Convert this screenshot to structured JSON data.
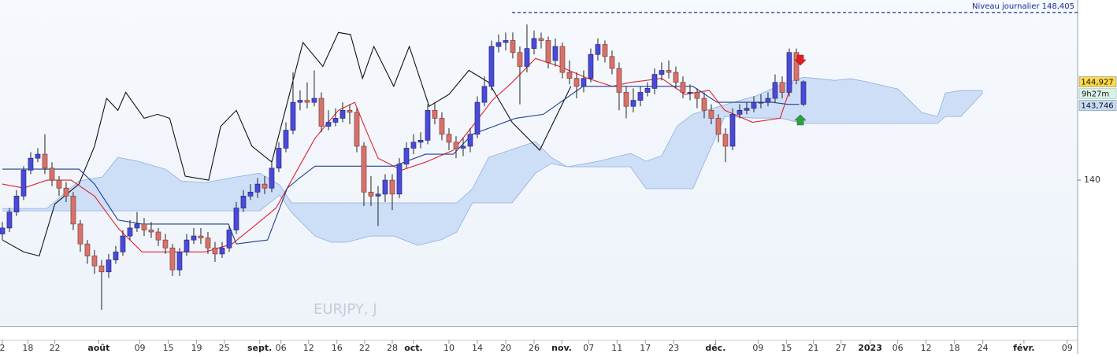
{
  "chart_data": {
    "type": "candlestick",
    "watermark": "EURJPY, J",
    "ylim": [
      132.67,
      149.03
    ],
    "yticks": [
      140
    ],
    "xlim": [
      -0.33,
      151.67
    ],
    "xticks": [
      {
        "value": 0,
        "label": "2"
      },
      {
        "value": 3.6,
        "label": "18"
      },
      {
        "value": 7.4,
        "label": "22"
      },
      {
        "value": 13.6,
        "label": "août",
        "major": true
      },
      {
        "value": 19.4,
        "label": "09"
      },
      {
        "value": 23.4,
        "label": "15"
      },
      {
        "value": 27.4,
        "label": "19"
      },
      {
        "value": 31.3,
        "label": "25"
      },
      {
        "value": 36.3,
        "label": "sept.",
        "major": true
      },
      {
        "value": 39.3,
        "label": "06"
      },
      {
        "value": 43.2,
        "label": "12"
      },
      {
        "value": 47.2,
        "label": "16"
      },
      {
        "value": 51.1,
        "label": "22"
      },
      {
        "value": 55,
        "label": "28"
      },
      {
        "value": 58,
        "label": "oct.",
        "major": true
      },
      {
        "value": 63,
        "label": "10"
      },
      {
        "value": 67,
        "label": "14"
      },
      {
        "value": 71,
        "label": "20"
      },
      {
        "value": 75,
        "label": "26"
      },
      {
        "value": 78.9,
        "label": "nov.",
        "major": true
      },
      {
        "value": 82.7,
        "label": "07"
      },
      {
        "value": 86.7,
        "label": "11"
      },
      {
        "value": 90.7,
        "label": "17"
      },
      {
        "value": 94.7,
        "label": "23"
      },
      {
        "value": 100.6,
        "label": "déc.",
        "major": true
      },
      {
        "value": 106.6,
        "label": "09"
      },
      {
        "value": 110.6,
        "label": "15"
      },
      {
        "value": 114.4,
        "label": "21"
      },
      {
        "value": 118.3,
        "label": "27"
      },
      {
        "value": 122.4,
        "label": "2023",
        "major": true
      },
      {
        "value": 126.3,
        "label": "06"
      },
      {
        "value": 130.3,
        "label": "12"
      },
      {
        "value": 134.3,
        "label": "18"
      },
      {
        "value": 138.3,
        "label": "24"
      },
      {
        "value": 144.1,
        "label": "févr.",
        "major": true
      },
      {
        "value": 150.2,
        "label": "09"
      }
    ],
    "colors": {
      "up": "#4a4ad6",
      "down": "#d4736c"
    },
    "ohlc": [
      [
        137.3,
        137.9,
        137.0,
        137.6
      ],
      [
        137.6,
        138.6,
        137.4,
        138.4
      ],
      [
        138.4,
        139.5,
        138.2,
        139.2
      ],
      [
        139.2,
        140.7,
        139.0,
        140.5
      ],
      [
        140.5,
        141.4,
        140.3,
        141.1
      ],
      [
        141.1,
        141.6,
        140.9,
        141.3
      ],
      [
        141.3,
        142.3,
        140.3,
        140.6
      ],
      [
        140.6,
        140.9,
        139.7,
        140.0
      ],
      [
        140.0,
        140.2,
        139.2,
        139.6
      ],
      [
        139.6,
        139.9,
        138.9,
        139.2
      ],
      [
        139.2,
        139.4,
        137.5,
        137.8
      ],
      [
        137.8,
        138.0,
        136.4,
        136.8
      ],
      [
        136.8,
        137.0,
        135.8,
        136.2
      ],
      [
        136.2,
        136.5,
        135.3,
        135.7
      ],
      [
        135.7,
        136.0,
        133.5,
        135.4
      ],
      [
        135.4,
        136.3,
        135.1,
        136.0
      ],
      [
        136.0,
        136.7,
        135.8,
        136.4
      ],
      [
        136.4,
        137.5,
        136.2,
        137.2
      ],
      [
        137.2,
        138.0,
        137.0,
        137.6
      ],
      [
        137.6,
        138.4,
        137.4,
        137.8
      ],
      [
        137.8,
        138.1,
        137.2,
        137.5
      ],
      [
        137.5,
        137.9,
        137.1,
        137.4
      ],
      [
        137.4,
        137.6,
        136.7,
        137.0
      ],
      [
        137.0,
        137.3,
        136.3,
        136.6
      ],
      [
        136.6,
        136.8,
        135.2,
        135.5
      ],
      [
        135.5,
        136.6,
        135.2,
        136.4
      ],
      [
        136.4,
        137.3,
        136.2,
        137.0
      ],
      [
        137.0,
        137.6,
        136.8,
        137.2
      ],
      [
        137.2,
        137.6,
        136.8,
        137.1
      ],
      [
        137.1,
        137.4,
        136.3,
        136.6
      ],
      [
        136.6,
        136.9,
        135.9,
        136.3
      ],
      [
        136.3,
        136.9,
        136.1,
        136.6
      ],
      [
        136.6,
        137.7,
        136.4,
        137.5
      ],
      [
        137.5,
        138.9,
        137.3,
        138.6
      ],
      [
        138.6,
        139.5,
        138.4,
        139.2
      ],
      [
        139.2,
        139.8,
        139.0,
        139.4
      ],
      [
        139.4,
        140.1,
        139.1,
        139.8
      ],
      [
        139.8,
        140.2,
        139.3,
        139.6
      ],
      [
        139.6,
        141.0,
        139.4,
        140.6
      ],
      [
        140.6,
        141.9,
        140.4,
        141.6
      ],
      [
        141.6,
        142.9,
        141.4,
        142.5
      ],
      [
        142.5,
        145.4,
        142.3,
        143.9
      ],
      [
        143.9,
        144.5,
        143.5,
        144.0
      ],
      [
        144.0,
        144.9,
        143.6,
        143.9
      ],
      [
        143.9,
        145.5,
        143.7,
        144.1
      ],
      [
        144.1,
        144.4,
        142.4,
        142.7
      ],
      [
        142.7,
        143.5,
        142.5,
        142.9
      ],
      [
        142.9,
        143.6,
        142.7,
        143.1
      ],
      [
        143.1,
        143.9,
        142.9,
        143.5
      ],
      [
        143.5,
        143.8,
        142.8,
        143.4
      ],
      [
        143.4,
        143.6,
        141.4,
        141.7
      ],
      [
        141.7,
        141.9,
        138.7,
        139.4
      ],
      [
        139.4,
        140.2,
        138.7,
        139.2
      ],
      [
        139.2,
        139.7,
        137.7,
        139.3
      ],
      [
        139.3,
        140.3,
        138.9,
        140.0
      ],
      [
        140.0,
        140.3,
        138.5,
        139.3
      ],
      [
        139.3,
        141.1,
        139.1,
        140.8
      ],
      [
        140.8,
        141.9,
        140.6,
        141.6
      ],
      [
        141.6,
        142.3,
        141.3,
        141.9
      ],
      [
        141.9,
        142.4,
        141.6,
        142.0
      ],
      [
        142.0,
        143.8,
        141.8,
        143.5
      ],
      [
        143.5,
        143.9,
        142.8,
        143.1
      ],
      [
        143.1,
        143.4,
        142.0,
        142.3
      ],
      [
        142.3,
        142.6,
        141.5,
        141.9
      ],
      [
        141.9,
        142.2,
        141.1,
        141.6
      ],
      [
        141.6,
        142.1,
        141.2,
        141.7
      ],
      [
        141.7,
        142.6,
        141.4,
        142.3
      ],
      [
        142.3,
        144.2,
        142.1,
        143.9
      ],
      [
        143.9,
        145.2,
        143.7,
        144.7
      ],
      [
        144.7,
        147.0,
        144.5,
        146.7
      ],
      [
        146.7,
        147.3,
        146.4,
        146.9
      ],
      [
        146.9,
        147.4,
        146.5,
        147.0
      ],
      [
        147.0,
        147.4,
        146.1,
        146.4
      ],
      [
        146.4,
        146.7,
        143.8,
        145.7
      ],
      [
        145.7,
        147.8,
        145.4,
        146.6
      ],
      [
        146.6,
        147.5,
        146.3,
        147.1
      ],
      [
        147.1,
        147.4,
        146.6,
        147.0
      ],
      [
        147.0,
        147.2,
        145.6,
        145.9
      ],
      [
        146.0,
        147.1,
        145.7,
        146.7
      ],
      [
        146.7,
        146.9,
        145.1,
        145.4
      ],
      [
        145.4,
        146.0,
        144.8,
        145.1
      ],
      [
        145.1,
        145.4,
        144.1,
        144.7
      ],
      [
        144.7,
        145.5,
        144.4,
        145.1
      ],
      [
        145.1,
        146.6,
        144.9,
        146.3
      ],
      [
        146.3,
        147.1,
        146.0,
        146.8
      ],
      [
        146.8,
        147.0,
        145.9,
        146.2
      ],
      [
        146.2,
        146.5,
        145.3,
        145.6
      ],
      [
        145.6,
        145.9,
        143.5,
        144.4
      ],
      [
        144.4,
        144.7,
        143.1,
        143.7
      ],
      [
        143.7,
        144.6,
        143.4,
        144.0
      ],
      [
        144.0,
        144.7,
        143.7,
        144.4
      ],
      [
        144.4,
        144.9,
        144.2,
        144.6
      ],
      [
        144.6,
        145.6,
        144.3,
        145.3
      ],
      [
        145.3,
        145.9,
        145.0,
        145.5
      ],
      [
        145.5,
        146.0,
        145.1,
        145.4
      ],
      [
        145.4,
        145.7,
        144.6,
        144.9
      ],
      [
        144.9,
        145.2,
        144.1,
        144.4
      ],
      [
        144.4,
        144.8,
        144.0,
        144.4
      ],
      [
        144.4,
        144.6,
        143.6,
        144.1
      ],
      [
        144.1,
        144.4,
        143.1,
        143.5
      ],
      [
        143.5,
        143.8,
        142.8,
        143.1
      ],
      [
        143.1,
        143.3,
        141.9,
        142.3
      ],
      [
        142.3,
        142.6,
        140.9,
        141.7
      ],
      [
        141.7,
        143.6,
        141.5,
        143.3
      ],
      [
        143.3,
        143.8,
        143.1,
        143.5
      ],
      [
        143.5,
        143.9,
        143.3,
        143.6
      ],
      [
        143.6,
        144.2,
        143.4,
        143.9
      ],
      [
        143.9,
        144.3,
        143.6,
        143.9
      ],
      [
        143.9,
        144.4,
        143.7,
        144.1
      ],
      [
        144.1,
        145.3,
        143.9,
        144.9
      ],
      [
        144.9,
        145.2,
        144.1,
        144.4
      ],
      [
        144.4,
        146.6,
        144.2,
        146.4
      ],
      [
        146.4,
        146.6,
        144.8,
        145.0
      ],
      [
        143.8,
        145.0,
        143.7,
        144.93
      ]
    ],
    "lines": [
      {
        "color": "#111111",
        "x": [
          0,
          3,
          5.2,
          7.4,
          10.8,
          13,
          14.7,
          16.3,
          17.4,
          20,
          21.9,
          23.6,
          25.8,
          29.1,
          30.8,
          33,
          35.2,
          38,
          40.2,
          42.4,
          45.2,
          47.4,
          49.1,
          50.8,
          52.4,
          55.2,
          57.4,
          60.2,
          63,
          65.8,
          68.6,
          71.9,
          75.8,
          78,
          80.2
        ],
        "values": [
          137.0,
          136.4,
          136.2,
          138.8,
          139.8,
          141.7,
          144.1,
          143.5,
          144.4,
          143.1,
          143.3,
          143.1,
          140.2,
          140.0,
          142.7,
          143.5,
          141.7,
          140.9,
          143.9,
          146.9,
          145.7,
          147.4,
          147.3,
          145.1,
          146.7,
          144.7,
          146.7,
          143.7,
          144.3,
          145.5,
          144.9,
          142.9,
          141.5,
          143.1,
          144.7
        ]
      },
      {
        "color": "#e0232b",
        "x": [
          0,
          3,
          6.3,
          9.7,
          13,
          16.3,
          19.7,
          23.6,
          28.6,
          32.4,
          35.2,
          38.6,
          41.9,
          44.1,
          47.4,
          49.7,
          51.3,
          53,
          56.3,
          59.7,
          63.6,
          66.3,
          69.1,
          71.9,
          75.2,
          78.6,
          82.6,
          86,
          88.6,
          93,
          96.3,
          99.7,
          101.9,
          105.8,
          109.7,
          111.4
        ],
        "values": [
          139.8,
          139.6,
          140.0,
          140.0,
          139.2,
          137.6,
          136.4,
          136.4,
          136.4,
          136.8,
          137.6,
          138.6,
          140.7,
          142.1,
          143.5,
          143.9,
          142.5,
          141.1,
          140.5,
          140.9,
          141.5,
          142.7,
          144.0,
          144.9,
          146.1,
          145.7,
          145.1,
          144.7,
          144.9,
          145.1,
          144.3,
          144.5,
          143.5,
          142.9,
          143.1,
          144.9
        ]
      },
      {
        "color": "#1f3f8f",
        "x": [
          0,
          10.8,
          13,
          16.3,
          19.7,
          31.9,
          33,
          37.4,
          40.2,
          41.9,
          44.1,
          55.2,
          59.7,
          63.6,
          66.3,
          72.4,
          76.3,
          81.9,
          97.4,
          100.8,
          108.6,
          110.8,
          112.4
        ],
        "values": [
          140.55,
          140.55,
          139.8,
          138.0,
          137.8,
          137.8,
          136.8,
          137.0,
          139.6,
          140.1,
          140.7,
          140.7,
          141.3,
          141.3,
          142.3,
          143.1,
          143.3,
          144.7,
          144.7,
          143.9,
          143.9,
          143.8,
          143.8
        ]
      }
    ],
    "cloud": {
      "color": "#c7d9f6",
      "x": [
        0,
        6.3,
        10.8,
        14.1,
        16.3,
        19.1,
        23,
        25.2,
        28.6,
        33,
        36.3,
        39.1,
        40.8,
        44.1,
        46.3,
        48.6,
        51.9,
        55.2,
        58.6,
        61.9,
        64.1,
        66.3,
        68.6,
        71.9,
        75.2,
        77.4,
        79.7,
        84.1,
        88.6,
        90.8,
        93,
        95.2,
        97.4,
        101.9,
        106.3,
        109.7,
        113,
        117.4,
        119.7,
        121.9,
        126.3,
        129.7,
        131.9,
        133,
        135.2,
        138.3
      ],
      "upper": [
        138.58,
        138.58,
        139.96,
        140.16,
        141.14,
        140.95,
        140.55,
        139.96,
        139.88,
        140.16,
        140.35,
        139.76,
        138.86,
        138.86,
        138.86,
        138.86,
        138.86,
        138.86,
        138.86,
        138.86,
        138.86,
        139.57,
        141.14,
        141.54,
        141.93,
        141.14,
        140.67,
        140.95,
        141.34,
        140.95,
        141.22,
        142.72,
        143.31,
        143.78,
        144.22,
        144.77,
        145.16,
        145.0,
        145.08,
        144.93,
        144.57,
        143.39,
        143.19,
        144.37,
        144.49,
        144.49
      ],
      "lower": [
        138.46,
        138.46,
        138.46,
        138.46,
        138.46,
        138.46,
        138.46,
        138.46,
        138.46,
        138.46,
        138.46,
        139.25,
        138.38,
        137.2,
        136.89,
        136.89,
        137.2,
        137.2,
        136.73,
        137.01,
        137.4,
        138.86,
        138.86,
        138.86,
        140.35,
        140.83,
        140.67,
        140.67,
        140.67,
        139.57,
        139.57,
        139.57,
        139.57,
        143.19,
        143.11,
        143.11,
        142.84,
        142.84,
        142.84,
        142.84,
        142.84,
        142.84,
        142.84,
        143.19,
        143.19,
        144.37
      ]
    },
    "level": {
      "value": 148.405,
      "label": "Niveau journalier 148,405"
    },
    "price_labels": [
      {
        "value": 144.927,
        "label": "144,927",
        "color": "#ffd84a"
      },
      {
        "value": 143.746,
        "label": "143,746",
        "color": "#c8dbf6"
      }
    ],
    "timer": "9h27m"
  }
}
